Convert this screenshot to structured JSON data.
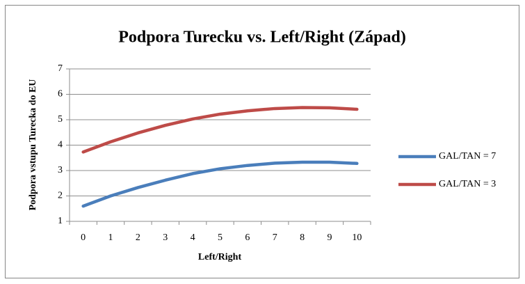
{
  "chart_data": {
    "type": "line",
    "title": "Podpora Turecku vs. Left/Right (Západ)",
    "x_label": "Left/Right",
    "y_label": "Podpora vstupu Turecka do EU",
    "categories": [
      "0",
      "1",
      "2",
      "3",
      "4",
      "5",
      "6",
      "7",
      "8",
      "9",
      "10"
    ],
    "series": [
      {
        "name": "GAL/TAN = 7",
        "color": "#4a7ebb",
        "values": [
          1.6,
          2.0,
          2.33,
          2.62,
          2.88,
          3.07,
          3.2,
          3.29,
          3.33,
          3.33,
          3.28
        ]
      },
      {
        "name": "GAL/TAN = 3",
        "color": "#be4b48",
        "values": [
          3.73,
          4.13,
          4.48,
          4.78,
          5.03,
          5.22,
          5.35,
          5.44,
          5.48,
          5.47,
          5.41
        ]
      }
    ],
    "ylim": [
      1,
      7
    ],
    "yticks": [
      1,
      2,
      3,
      4,
      5,
      6,
      7
    ],
    "grid": true,
    "legend": "right"
  }
}
